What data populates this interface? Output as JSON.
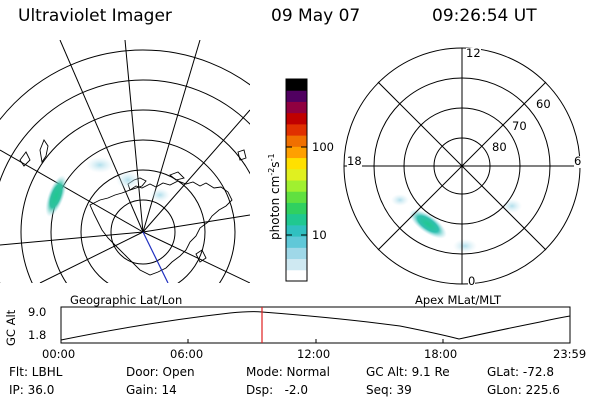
{
  "header": {
    "title": "Ultraviolet Imager",
    "date": "09 May 07",
    "time": "09:26:54 UT"
  },
  "left_map": {
    "label": "Geographic Lat/Lon"
  },
  "colorbar": {
    "unit_label": "photon cm",
    "unit_exp1": "-2",
    "unit_mid": "s",
    "unit_exp2": "-1",
    "ticks": [
      "100",
      "10"
    ],
    "colors": [
      "#ffffff",
      "#cfe9f2",
      "#9fd8e8",
      "#60c8d8",
      "#30c0c0",
      "#20c890",
      "#30d060",
      "#60e040",
      "#a0f030",
      "#e0f020",
      "#ffe000",
      "#ffa000",
      "#f07000",
      "#e03000",
      "#c00000",
      "#900040",
      "#500060",
      "#000000"
    ]
  },
  "right_dial": {
    "label": "Apex MLat/MLT",
    "mlt_labels": [
      "12",
      "18",
      "6",
      "0"
    ],
    "lat_labels": [
      "60",
      "70",
      "80"
    ]
  },
  "altitude_plot": {
    "ylabel": "GC Alt",
    "yticks": [
      "9.0",
      "1.8"
    ],
    "xticks": [
      "00:00",
      "06:00",
      "12:00",
      "18:00",
      "23:59"
    ]
  },
  "status": {
    "filter": "Flt: LBHL",
    "ip": "IP: 36.0",
    "door": "Door: Open",
    "gain": "Gain: 14",
    "mode": "Mode: Normal",
    "dsp": "Dsp:   -2.0",
    "gc_alt": "GC Alt: 9.1 Re",
    "seq": "Seq: 39",
    "glat": "GLat: -72.8",
    "glon": "GLon: 225.6"
  }
}
